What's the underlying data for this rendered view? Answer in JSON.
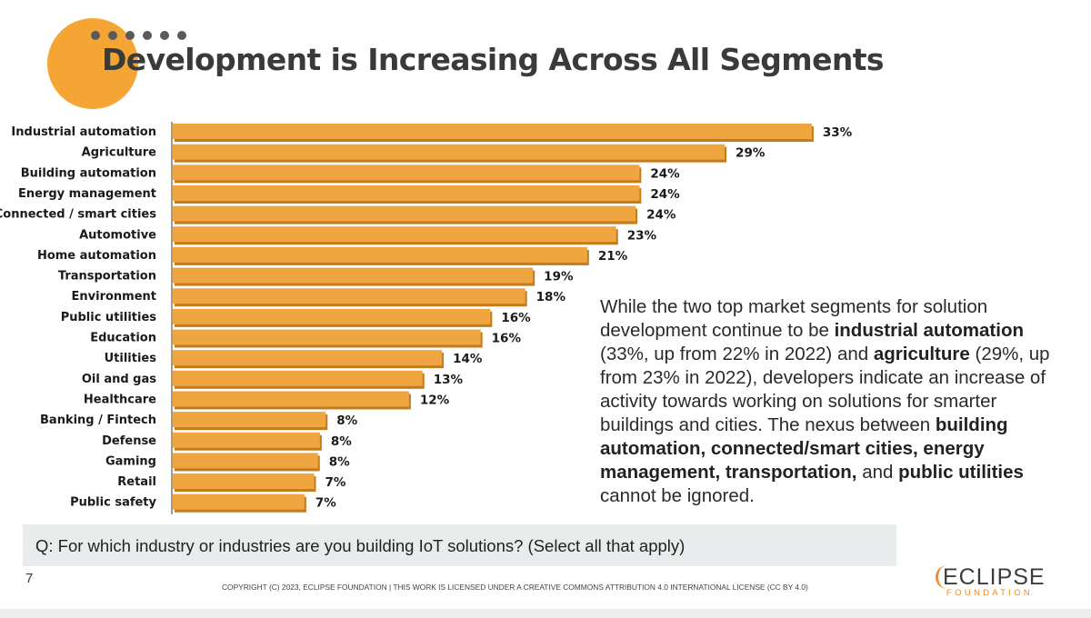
{
  "slide": {
    "title": "Development is Increasing Across All Segments",
    "callout": {
      "s1": "While the two top market segments for solution development continue to be ",
      "b1": "industrial automation",
      "s2": " (33%, up from 22% in 2022) and ",
      "b2": "agriculture",
      "s3": " (29%, up from 23% in 2022), developers indicate an increase of activity towards working on solutions for smarter buildings and cities. The nexus between ",
      "b3": "building automation, connected/smart cities, energy management, transportation,",
      "s4": " and ",
      "b4": "public utilities",
      "s5": " cannot be ignored."
    },
    "question": "Q: For which industry or industries are you building IoT solutions? (Select all that apply)",
    "page_number": "7",
    "copyright": "COPYRIGHT (C) 2023, ECLIPSE FOUNDATION | THIS WORK IS LICENSED UNDER A CREATIVE COMMONS ATTRIBUTION 4.0 INTERNATIONAL LICENSE (CC BY 4.0)",
    "logo": {
      "name": "ECLIPSE",
      "sub": "FOUNDATION"
    },
    "colors": {
      "bar": "#f0a640",
      "bar_shadow": "#c47b1d",
      "accent_circle": "#f4a533",
      "logo_orange": "#f08a24"
    }
  },
  "chart_data": {
    "type": "bar",
    "orientation": "horizontal",
    "title": "",
    "xlabel": "",
    "ylabel": "",
    "unit": "%",
    "xlim": [
      0,
      33
    ],
    "grid": false,
    "legend": "none",
    "categories": [
      "Industrial automation",
      "Agriculture",
      "Building automation",
      "Energy management",
      "Connected / smart cities",
      "Automotive",
      "Home automation",
      "Transportation",
      "Environment",
      "Public utilities",
      "Education",
      "Utilities",
      "Oil and gas",
      "Healthcare",
      "Banking / Fintech",
      "Defense",
      "Gaming",
      "Retail",
      "Public safety"
    ],
    "values": [
      33,
      29,
      24,
      24,
      24,
      23,
      21,
      19,
      18,
      16,
      16,
      14,
      13,
      12,
      8,
      8,
      8,
      7,
      7
    ],
    "value_labels": [
      "33%",
      "29%",
      "24%",
      "24%",
      "24%",
      "23%",
      "21%",
      "19%",
      "18%",
      "16%",
      "16%",
      "14%",
      "13%",
      "12%",
      "8%",
      "8%",
      "8%",
      "7%",
      "7%"
    ],
    "value_scale": "bar lengths drawn as in the original slide (rounded labels vs. exact shares)",
    "display_lengths": [
      33,
      28.5,
      24.1,
      24.1,
      23.9,
      22.9,
      21.4,
      18.6,
      18.2,
      16.4,
      15.9,
      13.9,
      12.9,
      12.2,
      7.9,
      7.6,
      7.5,
      7.3,
      6.8
    ]
  }
}
